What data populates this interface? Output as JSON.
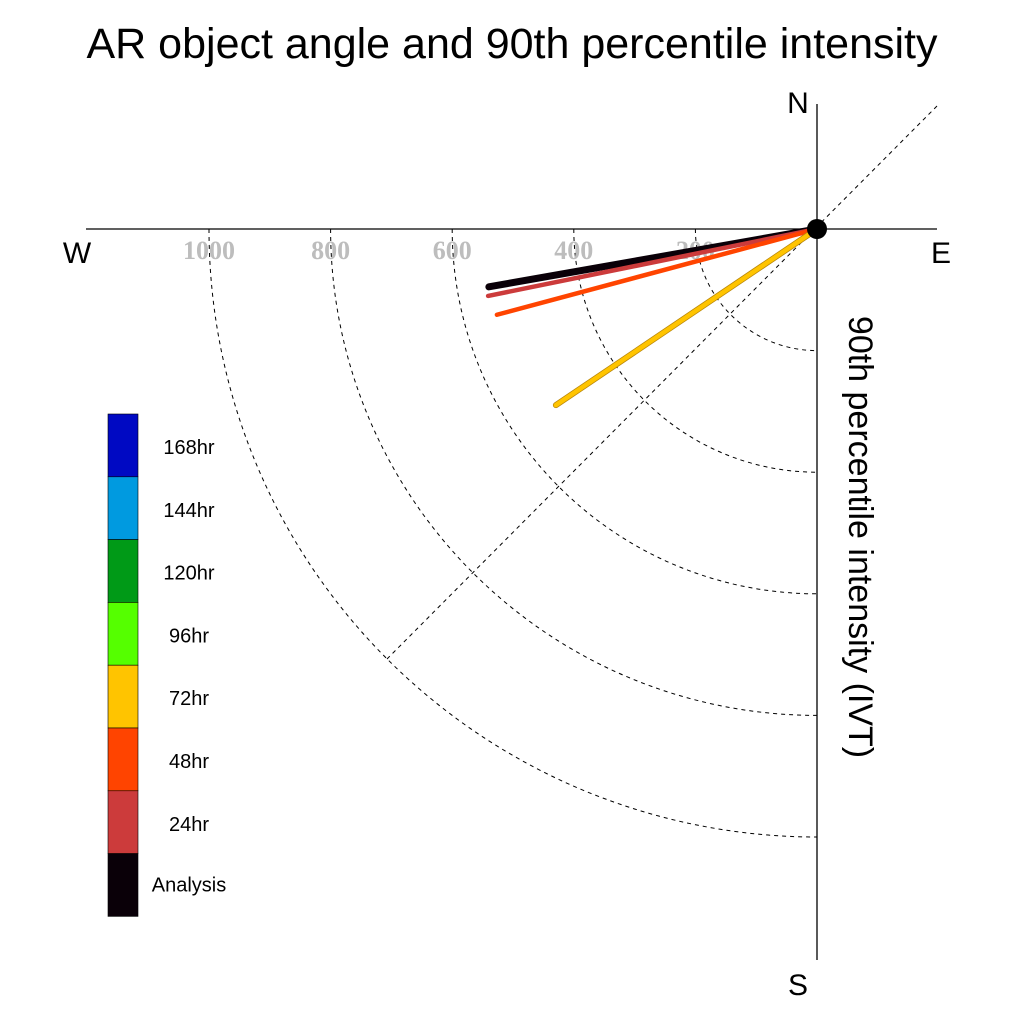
{
  "chart_data": {
    "type": "polar-vector",
    "title": "AR object angle and 90th percentile intensity",
    "axis_label": "90th percentile intensity (IVT)",
    "directions": {
      "north": "N",
      "south": "S",
      "east": "E",
      "west": "W"
    },
    "radial_ticks": [
      200,
      400,
      600,
      800,
      1000
    ],
    "radial_range": [
      0,
      1000
    ],
    "series": [
      {
        "name": "Analysis",
        "angle_deg": 260,
        "intensity": 548,
        "color": "#0a0008"
      },
      {
        "name": "24hr",
        "angle_deg": 258.5,
        "intensity": 552,
        "color": "#cc3b3b"
      },
      {
        "name": "48hr",
        "angle_deg": 255,
        "intensity": 545,
        "color": "#ff4400"
      },
      {
        "name": "72hr",
        "angle_deg": 236,
        "intensity": 518,
        "color": "#ffc400"
      }
    ],
    "legend": [
      {
        "label": "168hr",
        "color": "#0009c3"
      },
      {
        "label": "144hr",
        "color": "#009ae0"
      },
      {
        "label": "120hr",
        "color": "#009a17"
      },
      {
        "label": "96hr",
        "color": "#55ff00"
      },
      {
        "label": "72hr",
        "color": "#ffc400"
      },
      {
        "label": "48hr",
        "color": "#ff4400"
      },
      {
        "label": "24hr",
        "color": "#cc3b3b"
      },
      {
        "label": "Analysis",
        "color": "#0a0008"
      }
    ],
    "legend_placement": "left"
  }
}
